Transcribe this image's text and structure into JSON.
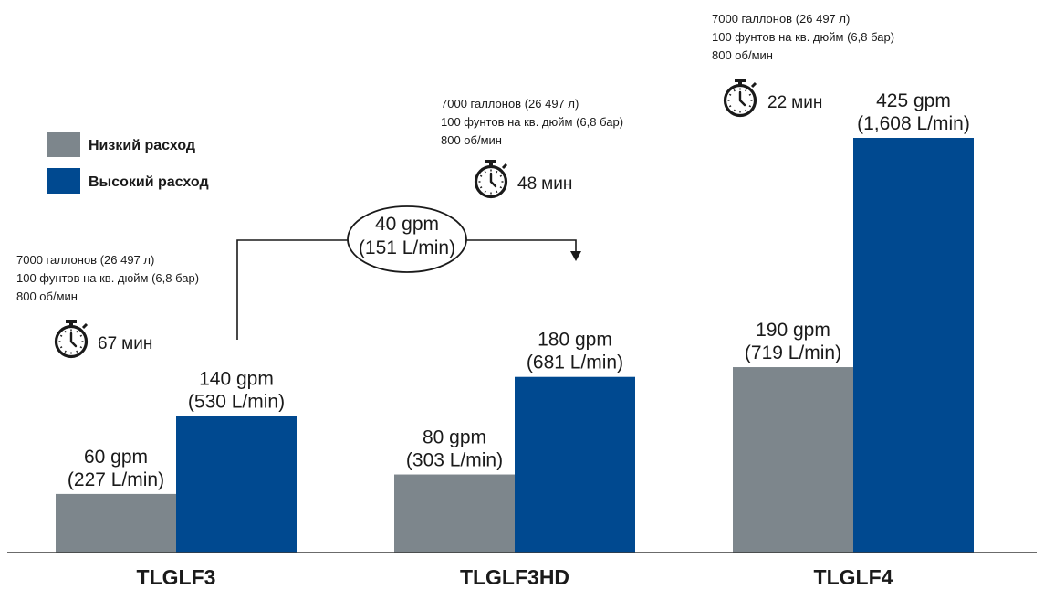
{
  "colors": {
    "low": "#7d868c",
    "high": "#004990",
    "text": "#1a1a1a"
  },
  "icons": {
    "timer": "stopwatch-icon"
  },
  "chart_data": {
    "type": "bar",
    "title": "",
    "xlabel": "",
    "ylabel": "",
    "ylim": [
      0,
      500
    ],
    "grid": false,
    "legend_placement": "top-left",
    "categories": [
      "TLGLF3",
      "TLGLF3HD",
      "TLGLF4"
    ],
    "series": [
      {
        "name": "Низкий расход",
        "values": [
          60,
          80,
          190
        ],
        "labels": [
          [
            "60 gpm",
            "(227 L/min)"
          ],
          [
            "80 gpm",
            "(303 L/min)"
          ],
          [
            "190 gpm",
            "(719 L/min)"
          ]
        ]
      },
      {
        "name": "Высокий расход",
        "values": [
          140,
          180,
          425
        ],
        "labels": [
          [
            "140 gpm",
            "(530 L/min)"
          ],
          [
            "180 gpm",
            "(681 L/min)"
          ],
          [
            "425 gpm",
            "(1,608 L/min)"
          ]
        ]
      }
    ],
    "notes": [
      {
        "lines": [
          "7000 галлонов (26 497 л)",
          "100 фунтов на кв. дюйм (6,8 бар)",
          "800 об/мин"
        ],
        "time_value": "67",
        "time_unit": "мин"
      },
      {
        "lines": [
          "7000 галлонов (26 497 л)",
          "100 фунтов на кв. дюйм (6,8 бар)",
          "800 об/мин"
        ],
        "time_value": "48",
        "time_unit": "мин"
      },
      {
        "lines": [
          "7000 галлонов (26 497 л)",
          "100 фунтов на кв. дюйм (6,8 бар)",
          "800 об/мин"
        ],
        "time_value": "22",
        "time_unit": "мин"
      }
    ],
    "annotation": {
      "lines": [
        "40 gpm",
        "(151 L/min)"
      ],
      "from": "TLGLF3",
      "to": "TLGLF3HD"
    }
  }
}
